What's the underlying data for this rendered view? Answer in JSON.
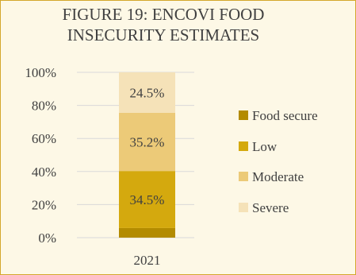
{
  "chart_data": {
    "type": "bar",
    "stacked": true,
    "title_line1": "FIGURE 19: ENCOVI FOOD",
    "title_line2": "INSECURITY ESTIMATES",
    "categories": [
      "2021"
    ],
    "y_ticks": [
      "0%",
      "20%",
      "40%",
      "60%",
      "80%",
      "100%"
    ],
    "ylim": [
      0,
      100
    ],
    "legend_position": "right",
    "series": [
      {
        "name": "Food secure",
        "values": [
          5.8
        ],
        "label": "",
        "color": "#b38b00"
      },
      {
        "name": "Low",
        "values": [
          34.5
        ],
        "label": "34.5%",
        "color": "#d4a90e"
      },
      {
        "name": "Moderate",
        "values": [
          35.2
        ],
        "label": "35.2%",
        "color": "#ecca78"
      },
      {
        "name": "Severe",
        "values": [
          24.5
        ],
        "label": "24.5%",
        "color": "#f5e2b8"
      }
    ]
  }
}
